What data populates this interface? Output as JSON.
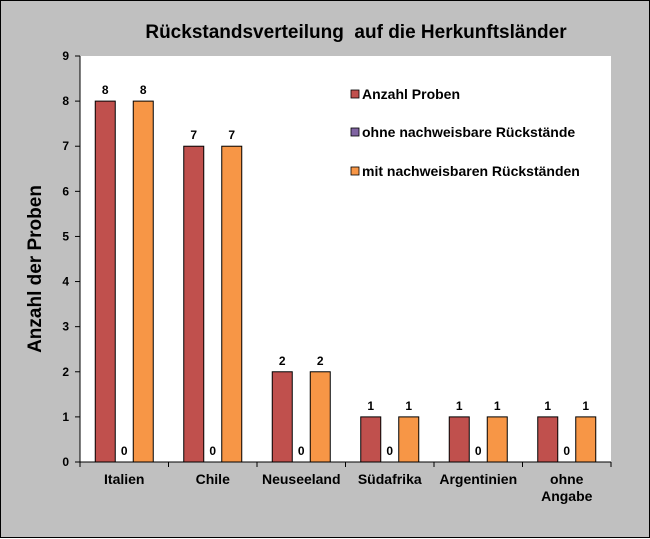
{
  "chart_data": {
    "type": "bar",
    "title": "Rückstandsverteilung  auf die Herkunftsländer",
    "ylabel": "Anzahl der Proben",
    "xlabel": "",
    "ylim": [
      0,
      9
    ],
    "yticks": [
      "0",
      "1",
      "2",
      "3",
      "4",
      "5",
      "6",
      "7",
      "8",
      "9"
    ],
    "categories": [
      [
        "Italien"
      ],
      [
        "Chile"
      ],
      [
        "Neuseeland"
      ],
      [
        "Südafrika"
      ],
      [
        "Argentinien"
      ],
      [
        "ohne",
        "Angabe"
      ]
    ],
    "series": [
      {
        "name": "Anzahl Proben",
        "color": "#c0504d",
        "values": [
          8,
          7,
          2,
          1,
          1,
          1
        ]
      },
      {
        "name": "ohne nachweisbare Rückstände",
        "color": "#8064a2",
        "values": [
          0,
          0,
          0,
          0,
          0,
          0
        ]
      },
      {
        "name": "mit nachweisbaren Rückständen",
        "color": "#f79646",
        "values": [
          8,
          7,
          2,
          1,
          1,
          1
        ]
      }
    ],
    "data_labels": true,
    "grid": false,
    "legend_position": "top-right",
    "plot_background": "#ffffff",
    "chart_background": "#c0c0c0"
  }
}
